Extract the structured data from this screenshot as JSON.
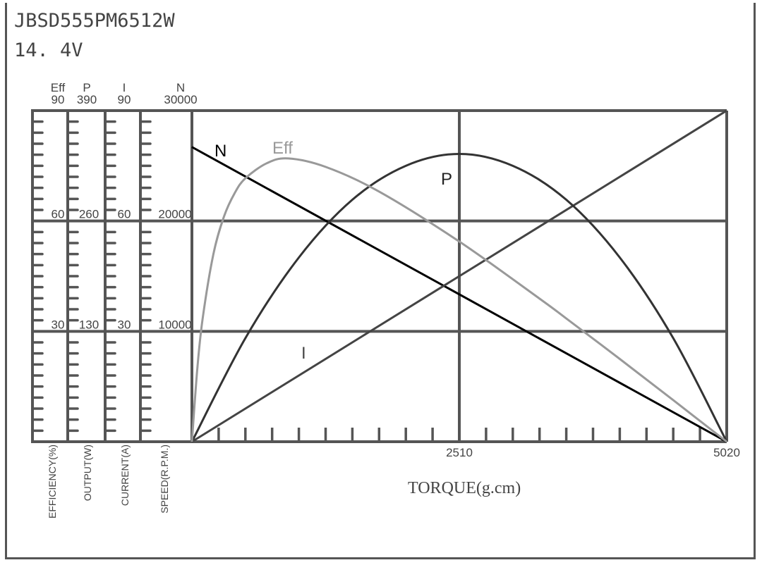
{
  "header": {
    "model": "JBSD555PM6512W",
    "voltage": "14. 4V"
  },
  "chart_data": {
    "type": "line",
    "xlabel": "TORQUE(g.cm)",
    "xlim": [
      0,
      5020
    ],
    "x_tick_labels": [
      "2510",
      "5020"
    ],
    "x_ticks": [
      2510,
      5020
    ],
    "grid": true,
    "axes": [
      {
        "key": "eff",
        "name": "Eff",
        "label": "EFFICIENCY(%)",
        "max": 90,
        "tick_labels": [
          "90",
          "60",
          "30"
        ]
      },
      {
        "key": "p",
        "name": "P",
        "label": "OUTPUT(W)",
        "max": 390,
        "tick_labels": [
          "390",
          "260",
          "130"
        ]
      },
      {
        "key": "i",
        "name": "I",
        "label": "CURRENT(A)",
        "max": 90,
        "tick_labels": [
          "90",
          "60",
          "30"
        ]
      },
      {
        "key": "n",
        "name": "N",
        "label": "SPEED(R.P.M.)",
        "max": 30000,
        "tick_labels": [
          "30000",
          "20000",
          "10000"
        ]
      }
    ],
    "series": [
      {
        "name": "N",
        "axis": "n",
        "color": "#000000",
        "points": [
          [
            0,
            26700
          ],
          [
            5020,
            0
          ]
        ]
      },
      {
        "name": "I",
        "axis": "i",
        "color": "#444444",
        "points": [
          [
            0,
            0
          ],
          [
            5020,
            90
          ]
        ]
      },
      {
        "name": "P",
        "axis": "p",
        "color": "#333333",
        "points": [
          [
            0,
            0
          ],
          [
            502,
            122
          ],
          [
            1004,
            217
          ],
          [
            1506,
            285
          ],
          [
            2008,
            325
          ],
          [
            2510,
            339
          ],
          [
            3012,
            325
          ],
          [
            3514,
            285
          ],
          [
            4016,
            217
          ],
          [
            4518,
            122
          ],
          [
            5020,
            0
          ]
        ]
      },
      {
        "name": "Eff",
        "axis": "eff",
        "color": "#999999",
        "points": [
          [
            0,
            0
          ],
          [
            50,
            19.6
          ],
          [
            100,
            33.3
          ],
          [
            201,
            50.9
          ],
          [
            301,
            61.2
          ],
          [
            402,
            67.6
          ],
          [
            502,
            71.6
          ],
          [
            703,
            75.7
          ],
          [
            904,
            77
          ],
          [
            1255,
            74.7
          ],
          [
            1757,
            68
          ],
          [
            2510,
            54.4
          ],
          [
            3263,
            38.9
          ],
          [
            3514,
            33.5
          ],
          [
            4016,
            22.5
          ],
          [
            4518,
            11.3
          ],
          [
            5020,
            0
          ]
        ]
      }
    ]
  }
}
